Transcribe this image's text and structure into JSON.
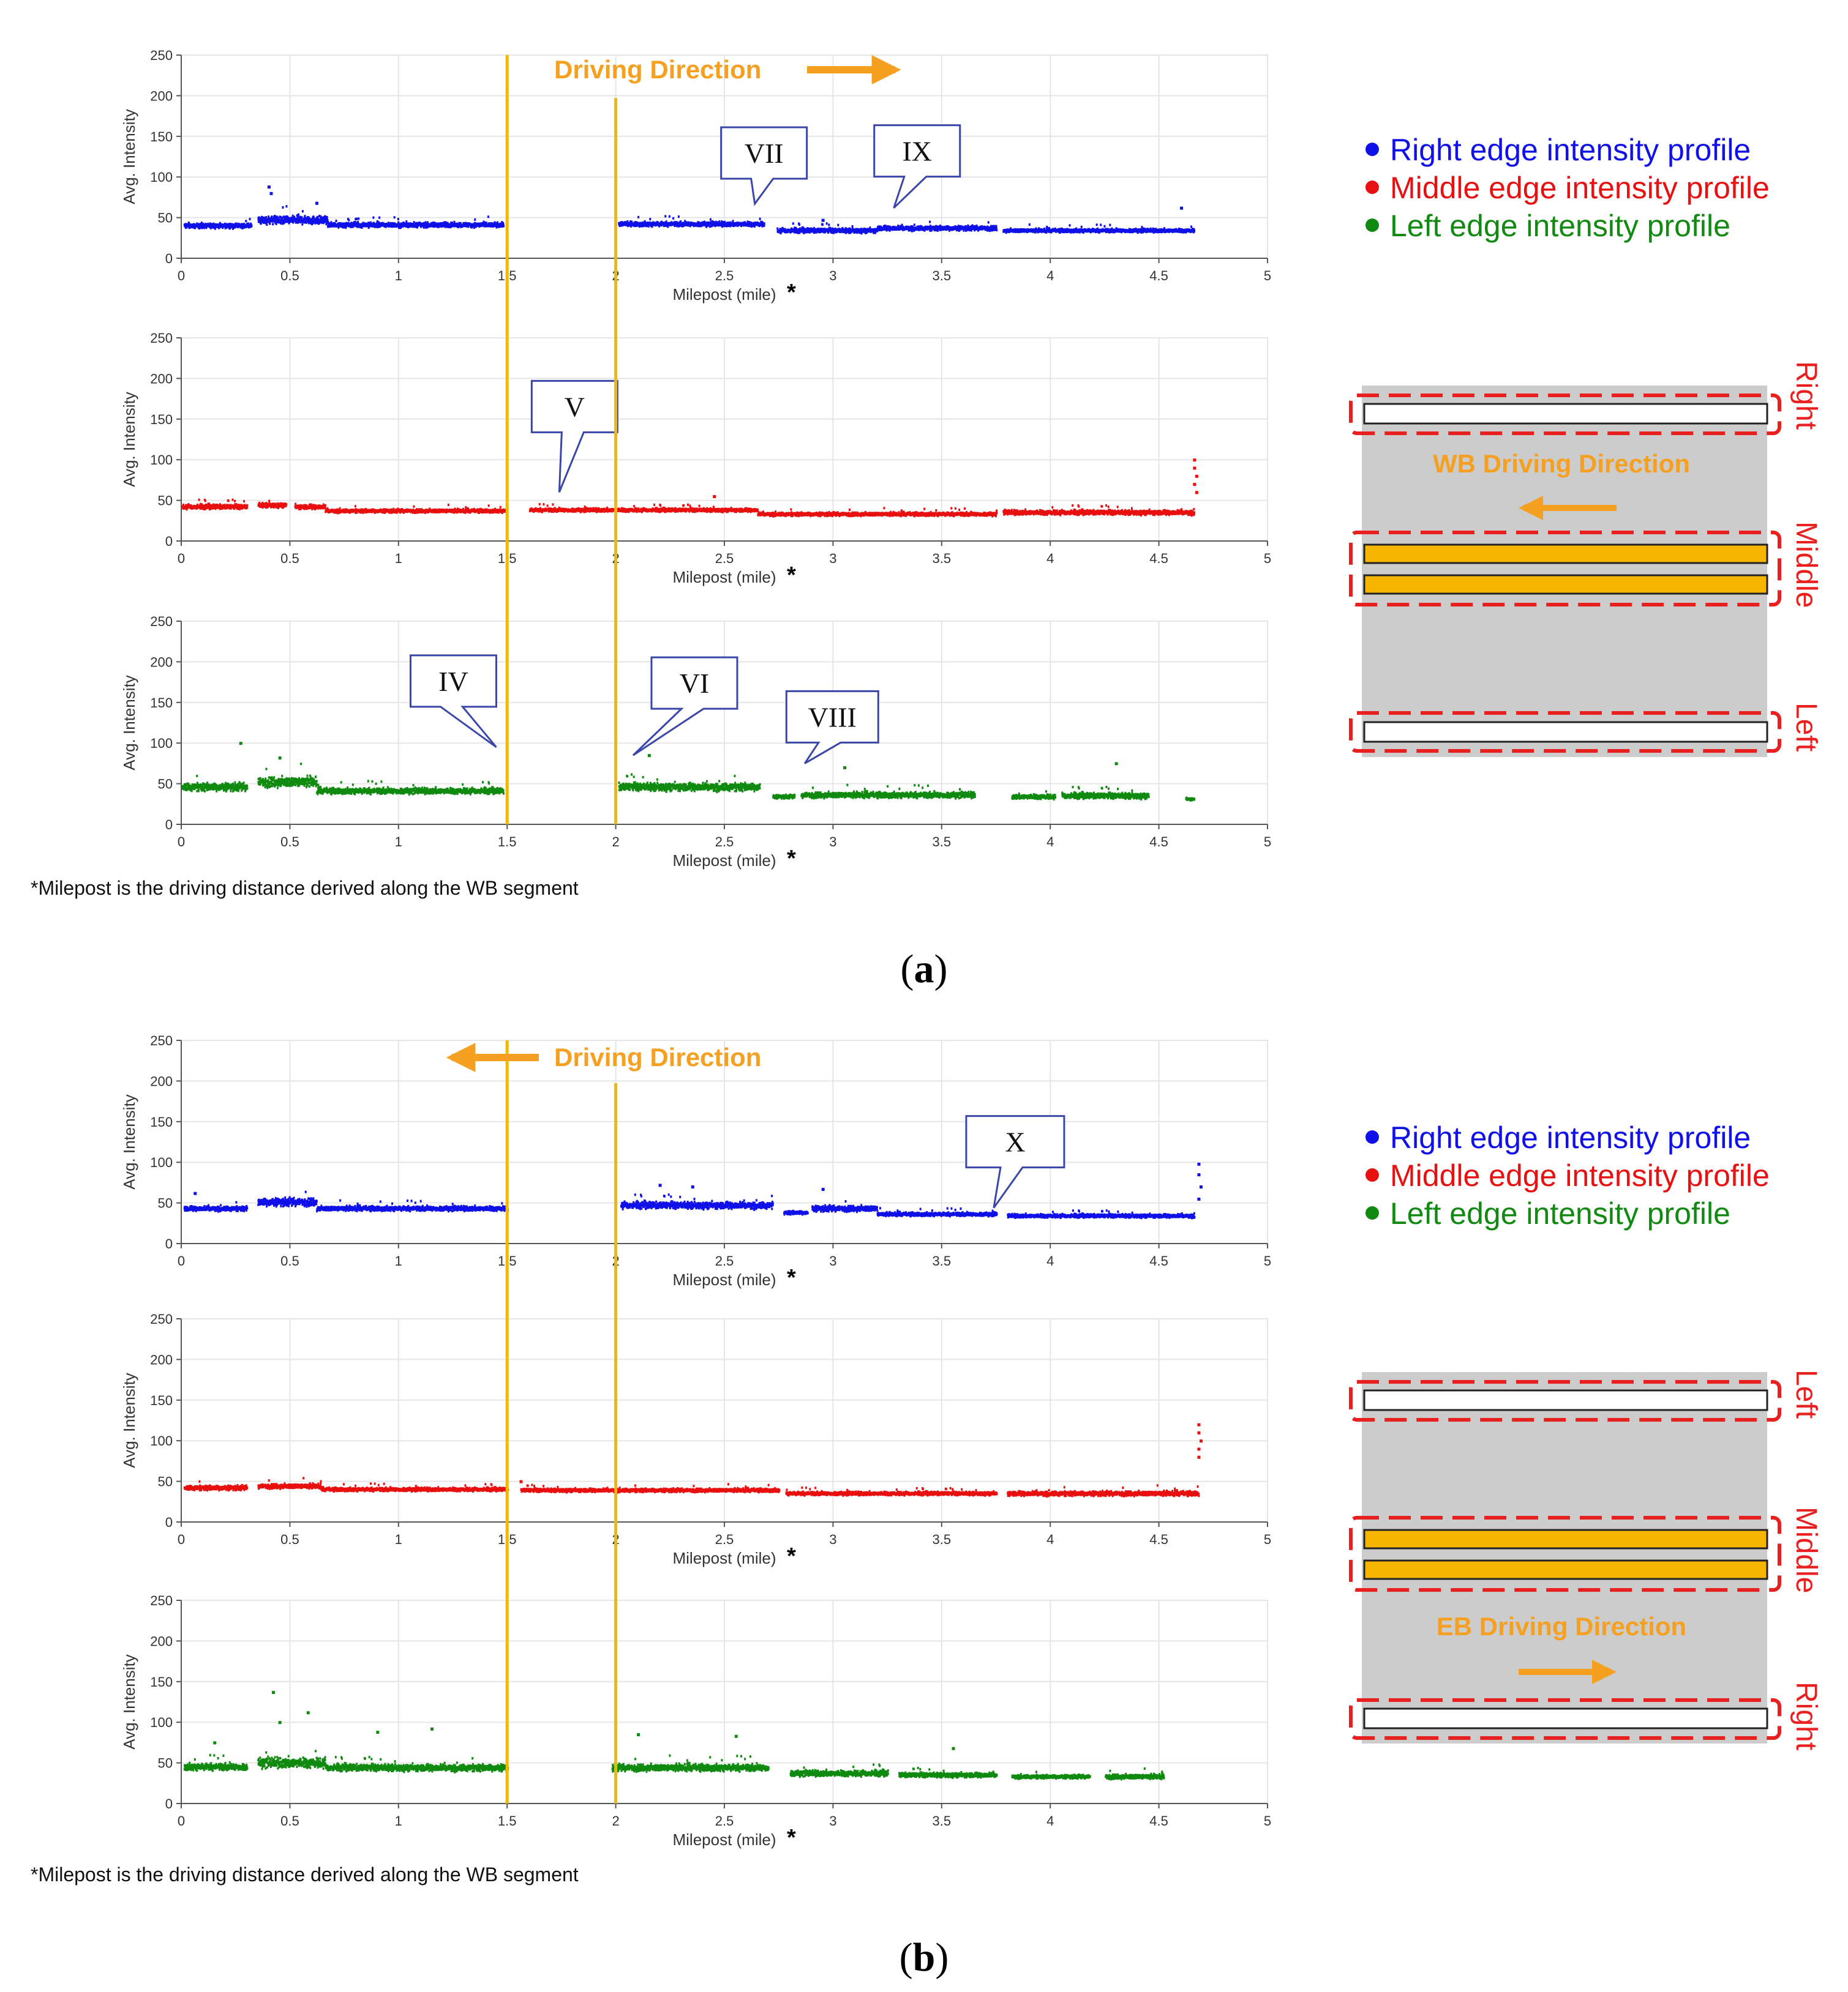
{
  "colors": {
    "right": "#1010e8",
    "middle": "#e81010",
    "left": "#108a10",
    "orange": "#f5a020",
    "vline": "#f0b800",
    "road": "#cccccc",
    "lane_fill": "#f7b500",
    "dashed": "#e82020",
    "callout_border": "#3a46a8"
  },
  "chart_data": [
    {
      "panel": "a",
      "caption_open": "(",
      "caption_letter": "a",
      "caption_close": ")",
      "driving_direction": "Driving Direction",
      "direction_arrow": "right",
      "footnote": "*Milepost is the driving distance derived along the WB segment",
      "legend": [
        "Right edge intensity profile",
        "Middle edge intensity profile",
        "Left edge intensity profile"
      ],
      "road_diagram": {
        "direction_label": "WB Driving Direction",
        "direction_arrow": "left",
        "lane_labels": [
          "Right",
          "Middle",
          "Left"
        ]
      },
      "vertical_markers": [
        1.5,
        2.0
      ],
      "subplots": [
        {
          "type": "scatter",
          "series": "Right edge intensity profile",
          "color_key": "right",
          "xlabel": "Milepost (mile)",
          "xlabel_star": "*",
          "ylabel": "Avg. Intensity",
          "xlim": [
            0,
            5
          ],
          "ylim": [
            0,
            250
          ],
          "x_ticks": [
            "0",
            "0.5",
            "1",
            "1.5",
            "2",
            "2.5",
            "3",
            "3.5",
            "4",
            "4.5",
            "5"
          ],
          "y_ticks": [
            "0",
            "50",
            "100",
            "150",
            "200",
            "250"
          ],
          "segments": [
            {
              "start": 0.01,
              "end": 0.32,
              "level": 40,
              "spread": 4
            },
            {
              "start": 0.35,
              "end": 0.67,
              "level": 47,
              "spread": 7
            },
            {
              "start": 0.67,
              "end": 1.48,
              "level": 41,
              "spread": 4
            },
            {
              "start": 2.01,
              "end": 2.68,
              "level": 42,
              "spread": 4
            },
            {
              "start": 2.74,
              "end": 3.2,
              "level": 34,
              "spread": 4
            },
            {
              "start": 3.2,
              "end": 3.75,
              "level": 37,
              "spread": 4
            },
            {
              "start": 3.78,
              "end": 4.66,
              "level": 34,
              "spread": 3
            }
          ],
          "outliers": [
            [
              0.4,
              88
            ],
            [
              0.41,
              80
            ],
            [
              0.62,
              68
            ],
            [
              4.6,
              62
            ],
            [
              2.95,
              47
            ]
          ],
          "callouts": [
            {
              "label": "VII",
              "tip_x": 2.64,
              "tip_y": 67
            },
            {
              "label": "IX",
              "tip_x": 3.28,
              "tip_y": 62
            }
          ]
        },
        {
          "type": "scatter",
          "series": "Middle edge intensity profile",
          "color_key": "middle",
          "xlabel": "Milepost (mile)",
          "xlabel_star": "*",
          "ylabel": "Avg. Intensity",
          "xlim": [
            0,
            5
          ],
          "ylim": [
            0,
            250
          ],
          "x_ticks": [
            "0",
            "0.5",
            "1",
            "1.5",
            "2",
            "2.5",
            "3",
            "3.5",
            "4",
            "4.5",
            "5"
          ],
          "y_ticks": [
            "0",
            "50",
            "100",
            "150",
            "200",
            "250"
          ],
          "segments": [
            {
              "start": 0.0,
              "end": 0.3,
              "level": 42,
              "spread": 4
            },
            {
              "start": 0.35,
              "end": 0.48,
              "level": 44,
              "spread": 4
            },
            {
              "start": 0.52,
              "end": 0.66,
              "level": 42,
              "spread": 4
            },
            {
              "start": 0.66,
              "end": 1.49,
              "level": 37,
              "spread": 3
            },
            {
              "start": 1.6,
              "end": 2.65,
              "level": 38,
              "spread": 3
            },
            {
              "start": 2.65,
              "end": 3.75,
              "level": 33,
              "spread": 3
            },
            {
              "start": 3.78,
              "end": 4.66,
              "level": 35,
              "spread": 4
            }
          ],
          "outliers": [
            [
              4.66,
              100
            ],
            [
              4.66,
              90
            ],
            [
              4.67,
              80
            ],
            [
              4.66,
              70
            ],
            [
              4.67,
              60
            ],
            [
              2.45,
              55
            ]
          ],
          "callouts": [
            {
              "label": "V",
              "tip_x": 1.74,
              "tip_y": 60
            }
          ]
        },
        {
          "type": "scatter",
          "series": "Left edge intensity profile",
          "color_key": "left",
          "xlabel": "Milepost (mile)",
          "xlabel_star": "*",
          "ylabel": "Avg. Intensity",
          "xlim": [
            0,
            5
          ],
          "ylim": [
            0,
            250
          ],
          "x_ticks": [
            "0",
            "0.5",
            "1",
            "1.5",
            "2",
            "2.5",
            "3",
            "3.5",
            "4",
            "4.5",
            "5"
          ],
          "y_ticks": [
            "0",
            "50",
            "100",
            "150",
            "200",
            "250"
          ],
          "segments": [
            {
              "start": 0.0,
              "end": 0.3,
              "level": 46,
              "spread": 7
            },
            {
              "start": 0.35,
              "end": 0.62,
              "level": 52,
              "spread": 9
            },
            {
              "start": 0.62,
              "end": 1.48,
              "level": 41,
              "spread": 5
            },
            {
              "start": 2.01,
              "end": 2.66,
              "level": 46,
              "spread": 7
            },
            {
              "start": 2.72,
              "end": 2.82,
              "level": 34,
              "spread": 3
            },
            {
              "start": 2.85,
              "end": 3.65,
              "level": 36,
              "spread": 5
            },
            {
              "start": 3.82,
              "end": 4.02,
              "level": 34,
              "spread": 4
            },
            {
              "start": 4.05,
              "end": 4.45,
              "level": 35,
              "spread": 5
            },
            {
              "start": 4.62,
              "end": 4.66,
              "level": 31,
              "spread": 2
            }
          ],
          "outliers": [
            [
              0.27,
              100
            ],
            [
              0.45,
              82
            ],
            [
              4.3,
              75
            ],
            [
              2.15,
              85
            ],
            [
              3.05,
              70
            ]
          ],
          "callouts": [
            {
              "label": "IV",
              "tip_x": 1.45,
              "tip_y": 95
            },
            {
              "label": "VI",
              "tip_x": 2.08,
              "tip_y": 85
            },
            {
              "label": "VIII",
              "tip_x": 2.87,
              "tip_y": 75
            }
          ]
        }
      ]
    },
    {
      "panel": "b",
      "caption_open": "(",
      "caption_letter": "b",
      "caption_close": ")",
      "driving_direction": "Driving Direction",
      "direction_arrow": "left",
      "footnote": "*Milepost is the driving distance derived along the WB segment",
      "legend": [
        "Right edge intensity profile",
        "Middle edge intensity profile",
        "Left edge intensity profile"
      ],
      "road_diagram": {
        "direction_label": "EB Driving Direction",
        "direction_arrow": "right",
        "lane_labels": [
          "Left",
          "Middle",
          "Right"
        ]
      },
      "vertical_markers": [
        1.5,
        2.0
      ],
      "subplots": [
        {
          "type": "scatter",
          "series": "Right edge intensity profile",
          "color_key": "right",
          "xlabel": "Milepost (mile)",
          "xlabel_star": "*",
          "ylabel": "Avg. Intensity",
          "xlim": [
            0,
            5
          ],
          "ylim": [
            0,
            250
          ],
          "x_ticks": [
            "0",
            "0.5",
            "1",
            "1.5",
            "2",
            "2.5",
            "3",
            "3.5",
            "4",
            "4.5",
            "5"
          ],
          "y_ticks": [
            "0",
            "50",
            "100",
            "150",
            "200",
            "250"
          ],
          "segments": [
            {
              "start": 0.01,
              "end": 0.3,
              "level": 43,
              "spread": 4
            },
            {
              "start": 0.35,
              "end": 0.62,
              "level": 51,
              "spread": 7
            },
            {
              "start": 0.62,
              "end": 1.5,
              "level": 43,
              "spread": 4
            },
            {
              "start": 2.02,
              "end": 2.72,
              "level": 47,
              "spread": 6
            },
            {
              "start": 2.77,
              "end": 2.88,
              "level": 38,
              "spread": 3
            },
            {
              "start": 2.9,
              "end": 3.2,
              "level": 43,
              "spread": 5
            },
            {
              "start": 3.2,
              "end": 3.75,
              "level": 36,
              "spread": 3
            },
            {
              "start": 3.8,
              "end": 4.66,
              "level": 34,
              "spread": 3
            }
          ],
          "outliers": [
            [
              4.68,
              98
            ],
            [
              4.68,
              85
            ],
            [
              4.69,
              70
            ],
            [
              4.68,
              55
            ],
            [
              2.2,
              72
            ],
            [
              2.35,
              70
            ],
            [
              2.95,
              67
            ],
            [
              0.06,
              62
            ]
          ],
          "callouts": [
            {
              "label": "X",
              "tip_x": 3.74,
              "tip_y": 44
            }
          ]
        },
        {
          "type": "scatter",
          "series": "Middle edge intensity profile",
          "color_key": "middle",
          "xlabel": "Milepost (mile)",
          "xlabel_star": "*",
          "ylabel": "Avg. Intensity",
          "xlim": [
            0,
            5
          ],
          "ylim": [
            0,
            250
          ],
          "x_ticks": [
            "0",
            "0.5",
            "1",
            "1.5",
            "2",
            "2.5",
            "3",
            "3.5",
            "4",
            "4.5",
            "5"
          ],
          "y_ticks": [
            "0",
            "50",
            "100",
            "150",
            "200",
            "250"
          ],
          "segments": [
            {
              "start": 0.01,
              "end": 0.3,
              "level": 42,
              "spread": 4
            },
            {
              "start": 0.35,
              "end": 0.64,
              "level": 44,
              "spread": 4
            },
            {
              "start": 0.64,
              "end": 1.5,
              "level": 40,
              "spread": 3
            },
            {
              "start": 1.56,
              "end": 2.75,
              "level": 39,
              "spread": 3
            },
            {
              "start": 2.78,
              "end": 3.75,
              "level": 35,
              "spread": 3
            },
            {
              "start": 3.8,
              "end": 4.68,
              "level": 35,
              "spread": 4
            }
          ],
          "outliers": [
            [
              4.68,
              120
            ],
            [
              4.68,
              110
            ],
            [
              4.69,
              100
            ],
            [
              4.68,
              90
            ],
            [
              4.68,
              80
            ],
            [
              1.56,
              50
            ]
          ],
          "callouts": []
        },
        {
          "type": "scatter",
          "series": "Left edge intensity profile",
          "color_key": "left",
          "xlabel": "Milepost (mile)",
          "xlabel_star": "*",
          "ylabel": "Avg. Intensity",
          "xlim": [
            0,
            5
          ],
          "ylim": [
            0,
            250
          ],
          "x_ticks": [
            "0",
            "0.5",
            "1",
            "1.5",
            "2",
            "2.5",
            "3",
            "3.5",
            "4",
            "4.5",
            "5"
          ],
          "y_ticks": [
            "0",
            "50",
            "100",
            "150",
            "200",
            "250"
          ],
          "segments": [
            {
              "start": 0.01,
              "end": 0.3,
              "level": 45,
              "spread": 6
            },
            {
              "start": 0.35,
              "end": 0.66,
              "level": 50,
              "spread": 9
            },
            {
              "start": 0.66,
              "end": 1.5,
              "level": 44,
              "spread": 6
            },
            {
              "start": 1.98,
              "end": 2.7,
              "level": 44,
              "spread": 6
            },
            {
              "start": 2.8,
              "end": 3.25,
              "level": 37,
              "spread": 5
            },
            {
              "start": 3.3,
              "end": 3.75,
              "level": 35,
              "spread": 4
            },
            {
              "start": 3.82,
              "end": 4.18,
              "level": 33,
              "spread": 3
            },
            {
              "start": 4.25,
              "end": 4.52,
              "level": 33,
              "spread": 4
            }
          ],
          "outliers": [
            [
              0.42,
              137
            ],
            [
              0.58,
              112
            ],
            [
              0.45,
              100
            ],
            [
              1.15,
              92
            ],
            [
              0.9,
              88
            ],
            [
              2.1,
              85
            ],
            [
              2.55,
              83
            ],
            [
              3.55,
              68
            ],
            [
              0.15,
              75
            ]
          ],
          "callouts": []
        }
      ]
    }
  ]
}
